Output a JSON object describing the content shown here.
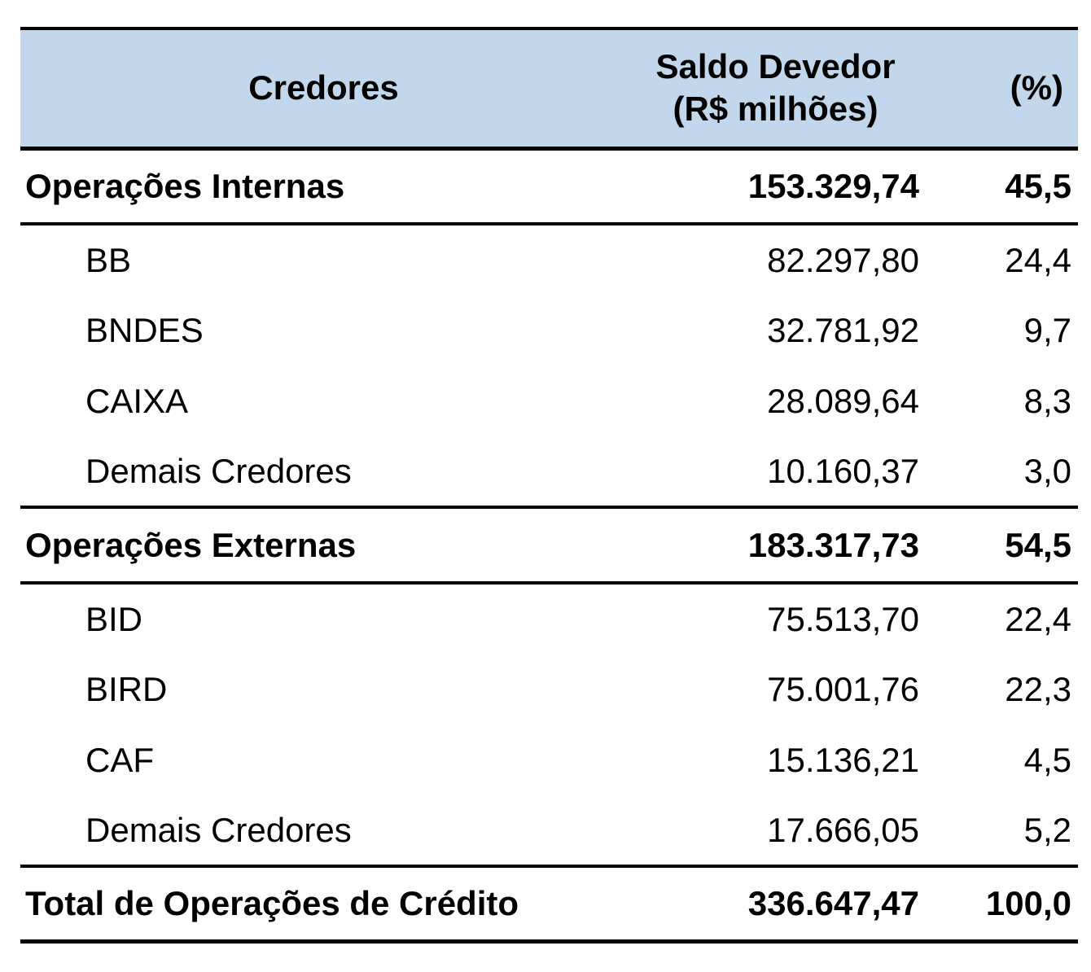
{
  "chart_data": {
    "type": "table",
    "columns": [
      "Credores",
      "Saldo Devedor (R$ milhões)",
      "(%)"
    ],
    "header": {
      "col1": "Credores",
      "col2_line1": "Saldo Devedor",
      "col2_line2": "(R$ milhões)",
      "col3": "(%)"
    },
    "rows": [
      {
        "name": "Operações Internas",
        "saldo": "153.329,74",
        "pct": "45,5",
        "kind": "section"
      },
      {
        "name": "BB",
        "saldo": "82.297,80",
        "pct": "24,4",
        "kind": "item"
      },
      {
        "name": "BNDES",
        "saldo": "32.781,92",
        "pct": "9,7",
        "kind": "item"
      },
      {
        "name": "CAIXA",
        "saldo": "28.089,64",
        "pct": "8,3",
        "kind": "item"
      },
      {
        "name": "Demais Credores",
        "saldo": "10.160,37",
        "pct": "3,0",
        "kind": "item"
      },
      {
        "name": "Operações Externas",
        "saldo": "183.317,73",
        "pct": "54,5",
        "kind": "section"
      },
      {
        "name": "BID",
        "saldo": "75.513,70",
        "pct": "22,4",
        "kind": "item"
      },
      {
        "name": "BIRD",
        "saldo": "75.001,76",
        "pct": "22,3",
        "kind": "item"
      },
      {
        "name": "CAF",
        "saldo": "15.136,21",
        "pct": "4,5",
        "kind": "item"
      },
      {
        "name": "Demais Credores",
        "saldo": "17.666,05",
        "pct": "5,2",
        "kind": "item"
      },
      {
        "name": "Total de Operações de Crédito",
        "saldo": "336.647,47",
        "pct": "100,0",
        "kind": "total"
      }
    ],
    "colors": {
      "header_bg": "#C2D7EB",
      "text": "#000000",
      "border": "#000000"
    }
  }
}
